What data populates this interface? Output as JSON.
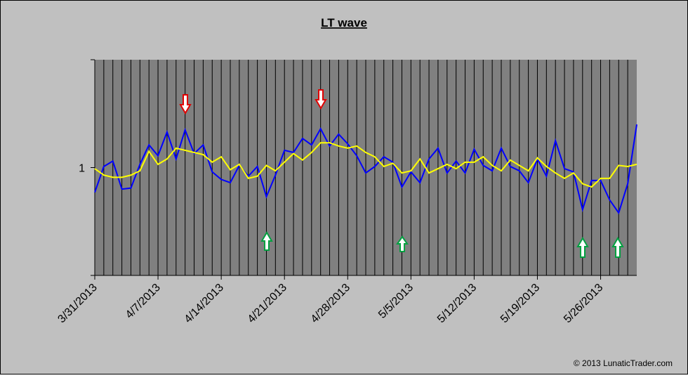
{
  "chart_data": {
    "type": "line",
    "title": "LT wave",
    "copyright": "© 2013 LunaticTrader.com",
    "categories": [
      "3/31/2013",
      null,
      null,
      null,
      null,
      null,
      null,
      "4/7/2013",
      null,
      null,
      null,
      null,
      null,
      null,
      "4/14/2013",
      null,
      null,
      null,
      null,
      null,
      null,
      "4/21/2013",
      null,
      null,
      null,
      null,
      null,
      null,
      "4/28/2013",
      null,
      null,
      null,
      null,
      null,
      null,
      "5/5/2013",
      null,
      null,
      null,
      null,
      null,
      null,
      "5/12/2013",
      null,
      null,
      null,
      null,
      null,
      null,
      "5/19/2013",
      null,
      null,
      null,
      null,
      null,
      null,
      "5/26/2013",
      null,
      null,
      null,
      null
    ],
    "series": [
      {
        "color": "#0000ff",
        "values": [
          0.77,
          1.01,
          1.06,
          0.8,
          0.81,
          1.03,
          1.21,
          1.11,
          1.33,
          1.08,
          1.35,
          1.13,
          1.21,
          0.96,
          0.89,
          0.86,
          1.02,
          0.92,
          1.01,
          0.73,
          0.93,
          1.16,
          1.14,
          1.27,
          1.21,
          1.36,
          1.2,
          1.31,
          1.22,
          1.11,
          0.95,
          1.01,
          1.1,
          1.05,
          0.82,
          0.96,
          0.86,
          1.08,
          1.18,
          0.95,
          1.06,
          0.95,
          1.17,
          1.02,
          0.97,
          1.18,
          1.01,
          0.97,
          0.86,
          1.08,
          0.92,
          1.25,
          0.99,
          0.96,
          0.61,
          0.88,
          0.88,
          0.7,
          0.58,
          0.85,
          1.4
        ]
      },
      {
        "color": "#ffff00",
        "values": [
          0.99,
          0.93,
          0.91,
          0.91,
          0.93,
          0.97,
          1.15,
          1.03,
          1.08,
          1.18,
          1.16,
          1.14,
          1.12,
          1.05,
          1.1,
          0.98,
          1.03,
          0.9,
          0.92,
          1.02,
          0.97,
          1.05,
          1.13,
          1.07,
          1.14,
          1.23,
          1.23,
          1.2,
          1.18,
          1.2,
          1.14,
          1.1,
          1.01,
          1.04,
          0.95,
          0.97,
          1.08,
          0.95,
          0.99,
          1.03,
          0.99,
          1.05,
          1.05,
          1.1,
          1.02,
          0.97,
          1.07,
          1.02,
          0.97,
          1.09,
          1.01,
          0.95,
          0.9,
          0.95,
          0.85,
          0.82,
          0.9,
          0.9,
          1.02,
          1.01,
          1.03
        ]
      }
    ],
    "ylim": [
      0,
      2
    ],
    "yticks": [
      1
    ],
    "plot_color": "#808080"
  }
}
